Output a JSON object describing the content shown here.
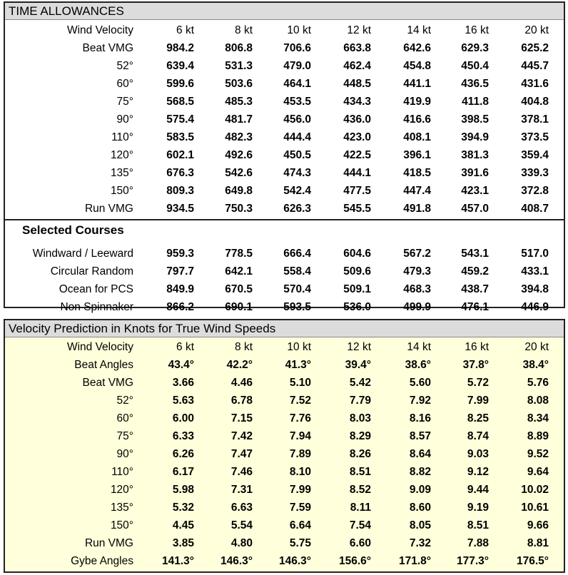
{
  "time": {
    "title": "TIME ALLOWANCES",
    "header_label": "Wind Velocity",
    "columns": [
      "6 kt",
      "8 kt",
      "10 kt",
      "12 kt",
      "14 kt",
      "16 kt",
      "20 kt"
    ],
    "rows": [
      {
        "label": "Beat VMG",
        "values": [
          "984.2",
          "806.8",
          "706.6",
          "663.8",
          "642.6",
          "629.3",
          "625.2"
        ]
      },
      {
        "label": "52°",
        "values": [
          "639.4",
          "531.3",
          "479.0",
          "462.4",
          "454.8",
          "450.4",
          "445.7"
        ]
      },
      {
        "label": "60°",
        "values": [
          "599.6",
          "503.6",
          "464.1",
          "448.5",
          "441.1",
          "436.5",
          "431.6"
        ]
      },
      {
        "label": "75°",
        "values": [
          "568.5",
          "485.3",
          "453.5",
          "434.3",
          "419.9",
          "411.8",
          "404.8"
        ]
      },
      {
        "label": "90°",
        "values": [
          "575.4",
          "481.7",
          "456.0",
          "436.0",
          "416.6",
          "398.5",
          "378.1"
        ]
      },
      {
        "label": "110°",
        "values": [
          "583.5",
          "482.3",
          "444.4",
          "423.0",
          "408.1",
          "394.9",
          "373.5"
        ]
      },
      {
        "label": "120°",
        "values": [
          "602.1",
          "492.6",
          "450.5",
          "422.5",
          "396.1",
          "381.3",
          "359.4"
        ]
      },
      {
        "label": "135°",
        "values": [
          "676.3",
          "542.6",
          "474.3",
          "444.1",
          "418.5",
          "391.6",
          "339.3"
        ]
      },
      {
        "label": "150°",
        "values": [
          "809.3",
          "649.8",
          "542.4",
          "477.5",
          "447.4",
          "423.1",
          "372.8"
        ]
      },
      {
        "label": "Run VMG",
        "values": [
          "934.5",
          "750.3",
          "626.3",
          "545.5",
          "491.8",
          "457.0",
          "408.7"
        ]
      }
    ],
    "selected_title": "Selected Courses",
    "selected_rows": [
      {
        "label": "Windward / Leeward",
        "values": [
          "959.3",
          "778.5",
          "666.4",
          "604.6",
          "567.2",
          "543.1",
          "517.0"
        ]
      },
      {
        "label": "Circular Random",
        "values": [
          "797.7",
          "642.1",
          "558.4",
          "509.6",
          "479.3",
          "459.2",
          "433.1"
        ]
      },
      {
        "label": "Ocean for PCS",
        "values": [
          "849.9",
          "670.5",
          "570.4",
          "509.1",
          "468.3",
          "438.7",
          "394.8"
        ]
      },
      {
        "label": "Non Spinnaker",
        "values": [
          "866.2",
          "690.1",
          "593.5",
          "536.0",
          "499.9",
          "476.1",
          "446.9"
        ]
      }
    ]
  },
  "velocity": {
    "title": "Velocity Prediction in Knots for True Wind Speeds",
    "header_label": "Wind Velocity",
    "columns": [
      "6 kt",
      "8 kt",
      "10 kt",
      "12 kt",
      "14 kt",
      "16 kt",
      "20 kt"
    ],
    "rows": [
      {
        "label": "Beat Angles",
        "values": [
          "43.4°",
          "42.2°",
          "41.3°",
          "39.4°",
          "38.6°",
          "37.8°",
          "38.4°"
        ]
      },
      {
        "label": "Beat VMG",
        "values": [
          "3.66",
          "4.46",
          "5.10",
          "5.42",
          "5.60",
          "5.72",
          "5.76"
        ]
      },
      {
        "label": "52°",
        "values": [
          "5.63",
          "6.78",
          "7.52",
          "7.79",
          "7.92",
          "7.99",
          "8.08"
        ]
      },
      {
        "label": "60°",
        "values": [
          "6.00",
          "7.15",
          "7.76",
          "8.03",
          "8.16",
          "8.25",
          "8.34"
        ]
      },
      {
        "label": "75°",
        "values": [
          "6.33",
          "7.42",
          "7.94",
          "8.29",
          "8.57",
          "8.74",
          "8.89"
        ]
      },
      {
        "label": "90°",
        "values": [
          "6.26",
          "7.47",
          "7.89",
          "8.26",
          "8.64",
          "9.03",
          "9.52"
        ]
      },
      {
        "label": "110°",
        "values": [
          "6.17",
          "7.46",
          "8.10",
          "8.51",
          "8.82",
          "9.12",
          "9.64"
        ]
      },
      {
        "label": "120°",
        "values": [
          "5.98",
          "7.31",
          "7.99",
          "8.52",
          "9.09",
          "9.44",
          "10.02"
        ]
      },
      {
        "label": "135°",
        "values": [
          "5.32",
          "6.63",
          "7.59",
          "8.11",
          "8.60",
          "9.19",
          "10.61"
        ]
      },
      {
        "label": "150°",
        "values": [
          "4.45",
          "5.54",
          "6.64",
          "7.54",
          "8.05",
          "8.51",
          "9.66"
        ]
      },
      {
        "label": "Run VMG",
        "values": [
          "3.85",
          "4.80",
          "5.75",
          "6.60",
          "7.32",
          "7.88",
          "8.81"
        ]
      },
      {
        "label": "Gybe Angles",
        "values": [
          "141.3°",
          "146.3°",
          "146.3°",
          "156.6°",
          "171.8°",
          "177.3°",
          "176.5°"
        ]
      }
    ]
  }
}
